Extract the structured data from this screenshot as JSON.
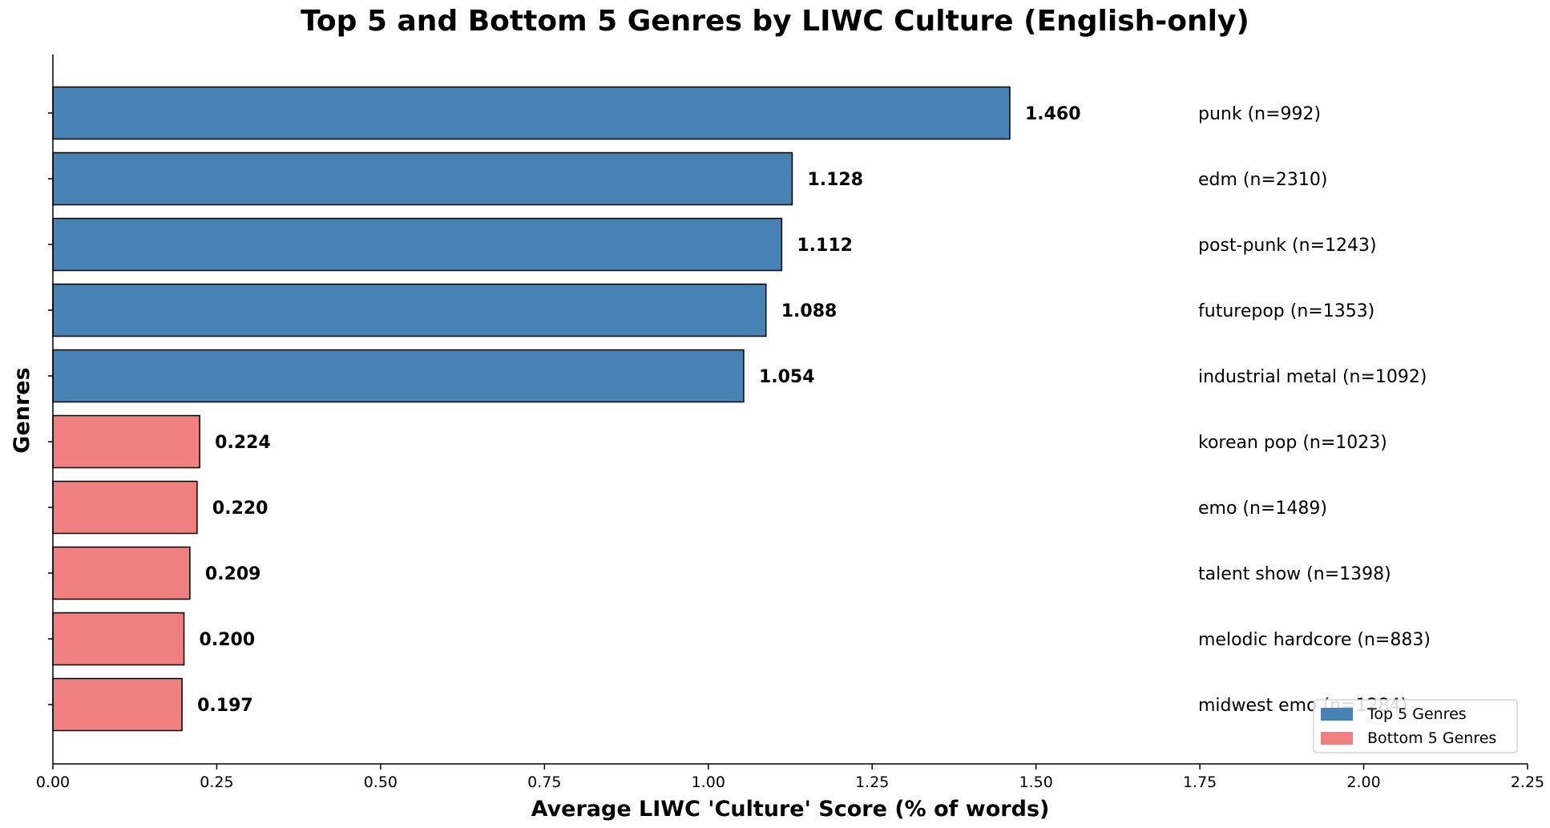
{
  "chart_data": {
    "type": "bar",
    "orientation": "horizontal",
    "title": "Top 5 and Bottom 5 Genres by LIWC Culture (English-only)",
    "xlabel": "Average LIWC 'Culture' Score (% of words)",
    "ylabel": "Genres",
    "xlim": [
      0,
      2.25
    ],
    "xticks": [
      "0.00",
      "0.25",
      "0.50",
      "0.75",
      "1.00",
      "1.25",
      "1.50",
      "1.75",
      "2.00",
      "2.25"
    ],
    "grid": false,
    "legend_position": "bottom-right",
    "legend": [
      {
        "label": "Top 5 Genres",
        "color": "#4682b4"
      },
      {
        "label": "Bottom 5 Genres",
        "color": "#f08080"
      }
    ],
    "bars": [
      {
        "label": "punk (n=992)",
        "value": 1.46,
        "value_label": "1.460",
        "group": "top"
      },
      {
        "label": "edm (n=2310)",
        "value": 1.128,
        "value_label": "1.128",
        "group": "top"
      },
      {
        "label": "post-punk (n=1243)",
        "value": 1.112,
        "value_label": "1.112",
        "group": "top"
      },
      {
        "label": "futurepop (n=1353)",
        "value": 1.088,
        "value_label": "1.088",
        "group": "top"
      },
      {
        "label": "industrial metal (n=1092)",
        "value": 1.054,
        "value_label": "1.054",
        "group": "top"
      },
      {
        "label": "korean pop (n=1023)",
        "value": 0.224,
        "value_label": "0.224",
        "group": "bottom"
      },
      {
        "label": "emo (n=1489)",
        "value": 0.22,
        "value_label": "0.220",
        "group": "bottom"
      },
      {
        "label": "talent show (n=1398)",
        "value": 0.209,
        "value_label": "0.209",
        "group": "bottom"
      },
      {
        "label": "melodic hardcore (n=883)",
        "value": 0.2,
        "value_label": "0.200",
        "group": "bottom"
      },
      {
        "label": "midwest emo (n=1284)",
        "value": 0.197,
        "value_label": "0.197",
        "group": "bottom"
      }
    ],
    "colors": {
      "top": "#4682b4",
      "bottom": "#f08080",
      "edge": "#000000"
    }
  }
}
